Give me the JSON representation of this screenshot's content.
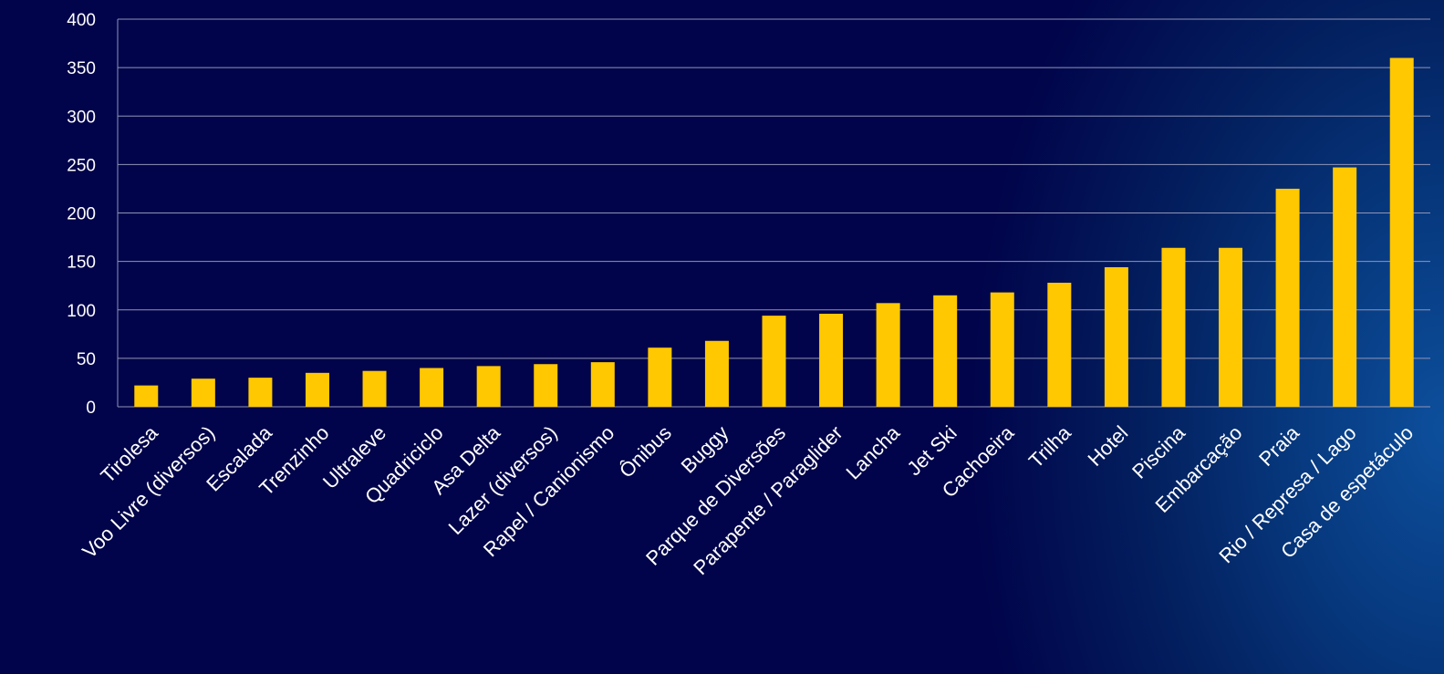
{
  "chart_data": {
    "type": "bar",
    "title": "",
    "xlabel": "",
    "ylabel": "",
    "ylim": [
      0,
      400
    ],
    "yticks": [
      0,
      50,
      100,
      150,
      200,
      250,
      300,
      350,
      400
    ],
    "grid": true,
    "bar_color": "#ffc800",
    "categories": [
      "Tirolesa",
      "Voo Livre (diversos)",
      "Escalada",
      "Trenzinho",
      "Ultraleve",
      "Quadriciclo",
      "Asa Delta",
      "Lazer  (diversos)",
      "Rapel / Canionismo",
      "Ônibus",
      "Buggy",
      "Parque de Diversões",
      "Parapente / Paraglider",
      "Lancha",
      "Jet Ski",
      "Cachoeira",
      "Trilha",
      "Hotel",
      "Piscina",
      "Embarcação",
      "Praia",
      "Rio / Represa / Lago",
      "Casa de espetáculo"
    ],
    "values": [
      22,
      29,
      30,
      35,
      37,
      40,
      42,
      44,
      46,
      61,
      68,
      94,
      96,
      107,
      115,
      118,
      128,
      144,
      164,
      164,
      225,
      247,
      360
    ]
  }
}
